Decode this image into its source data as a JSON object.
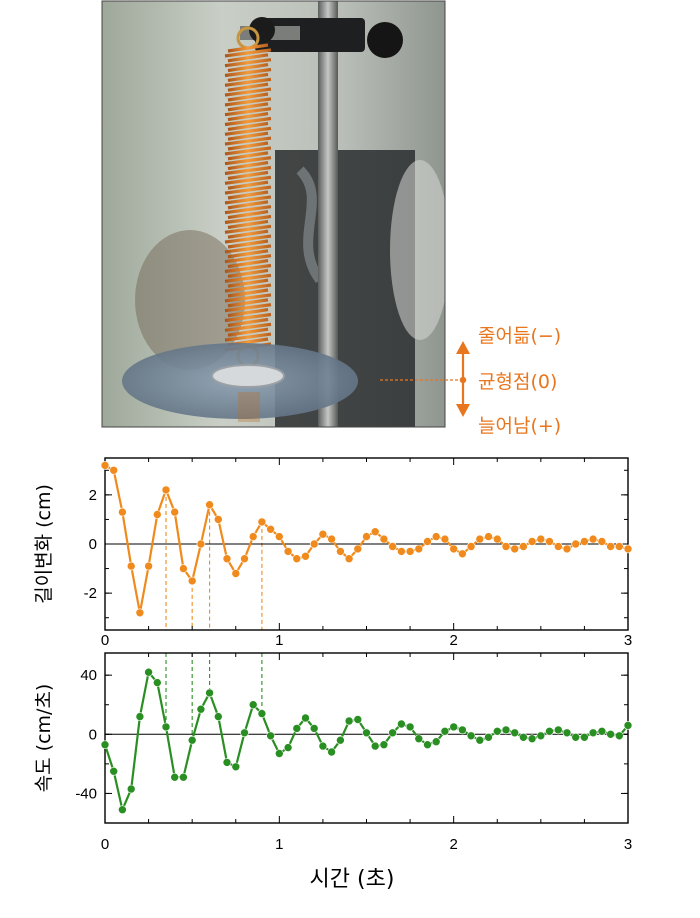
{
  "annotations": {
    "compressed": "줄어듦(−)",
    "equilibrium": "균형점(0)",
    "stretched": "늘어남(+)"
  },
  "colors": {
    "top_series": "#f08a1c",
    "bottom_series": "#2a8f22",
    "annotation": "#e8761e"
  },
  "chart_data": [
    {
      "type": "line",
      "ylabel": "길이변화 (cm)",
      "xlim": [
        0,
        3
      ],
      "ylim": [
        -3.5,
        3.5
      ],
      "yticks": [
        "-2",
        "0",
        "2"
      ],
      "xticks": [
        "0",
        "1",
        "2",
        "3"
      ],
      "x": [
        0.0,
        0.05,
        0.1,
        0.15,
        0.2,
        0.25,
        0.3,
        0.35,
        0.4,
        0.45,
        0.5,
        0.55,
        0.6,
        0.65,
        0.7,
        0.75,
        0.8,
        0.85,
        0.9,
        0.95,
        1.0,
        1.05,
        1.1,
        1.15,
        1.2,
        1.25,
        1.3,
        1.35,
        1.4,
        1.45,
        1.5,
        1.55,
        1.6,
        1.65,
        1.7,
        1.75,
        1.8,
        1.85,
        1.9,
        1.95,
        2.0,
        2.05,
        2.1,
        2.15,
        2.2,
        2.25,
        2.3,
        2.35,
        2.4,
        2.45,
        2.5,
        2.55,
        2.6,
        2.65,
        2.7,
        2.75,
        2.8,
        2.85,
        2.9,
        2.95,
        3.0
      ],
      "y": [
        3.2,
        3.0,
        1.3,
        -0.9,
        -2.8,
        -0.9,
        1.2,
        2.2,
        1.3,
        -1.0,
        -1.5,
        0.0,
        1.6,
        1.0,
        -0.6,
        -1.2,
        -0.6,
        0.3,
        0.9,
        0.6,
        0.3,
        -0.3,
        -0.6,
        -0.5,
        0.0,
        0.4,
        0.2,
        -0.3,
        -0.6,
        -0.2,
        0.3,
        0.5,
        0.2,
        -0.1,
        -0.3,
        -0.3,
        -0.2,
        0.1,
        0.3,
        0.2,
        -0.2,
        -0.4,
        -0.1,
        0.2,
        0.3,
        0.2,
        -0.1,
        -0.2,
        -0.1,
        0.1,
        0.2,
        0.1,
        -0.1,
        -0.2,
        0.0,
        0.1,
        0.2,
        0.1,
        -0.1,
        -0.1,
        -0.2
      ]
    },
    {
      "type": "line",
      "ylabel": "속도 (cm/초)",
      "xlabel": "시간 (초)",
      "xlim": [
        0,
        3
      ],
      "ylim": [
        -60,
        55
      ],
      "yticks": [
        "-40",
        "0",
        "40"
      ],
      "xticks": [
        "0",
        "1",
        "2",
        "3"
      ],
      "x": [
        0.0,
        0.05,
        0.1,
        0.15,
        0.2,
        0.25,
        0.3,
        0.35,
        0.4,
        0.45,
        0.5,
        0.55,
        0.6,
        0.65,
        0.7,
        0.75,
        0.8,
        0.85,
        0.9,
        0.95,
        1.0,
        1.05,
        1.1,
        1.15,
        1.2,
        1.25,
        1.3,
        1.35,
        1.4,
        1.45,
        1.5,
        1.55,
        1.6,
        1.65,
        1.7,
        1.75,
        1.8,
        1.85,
        1.9,
        1.95,
        2.0,
        2.05,
        2.1,
        2.15,
        2.2,
        2.25,
        2.3,
        2.35,
        2.4,
        2.45,
        2.5,
        2.55,
        2.6,
        2.65,
        2.7,
        2.75,
        2.8,
        2.85,
        2.9,
        2.95,
        3.0
      ],
      "y": [
        -7,
        -25,
        -51,
        -37,
        12,
        42,
        35,
        5,
        -29,
        -29,
        -4,
        17,
        28,
        12,
        -19,
        -22,
        1,
        20,
        14,
        -1,
        -13,
        -9,
        4,
        11,
        4,
        -8,
        -12,
        -4,
        9,
        10,
        1,
        -8,
        -7,
        1,
        7,
        5,
        -3,
        -7,
        -5,
        2,
        5,
        3,
        -1,
        -4,
        -2,
        2,
        3,
        1,
        -2,
        -3,
        -1,
        2,
        3,
        1,
        -2,
        -2,
        1,
        2,
        0,
        -1,
        6
      ]
    }
  ]
}
